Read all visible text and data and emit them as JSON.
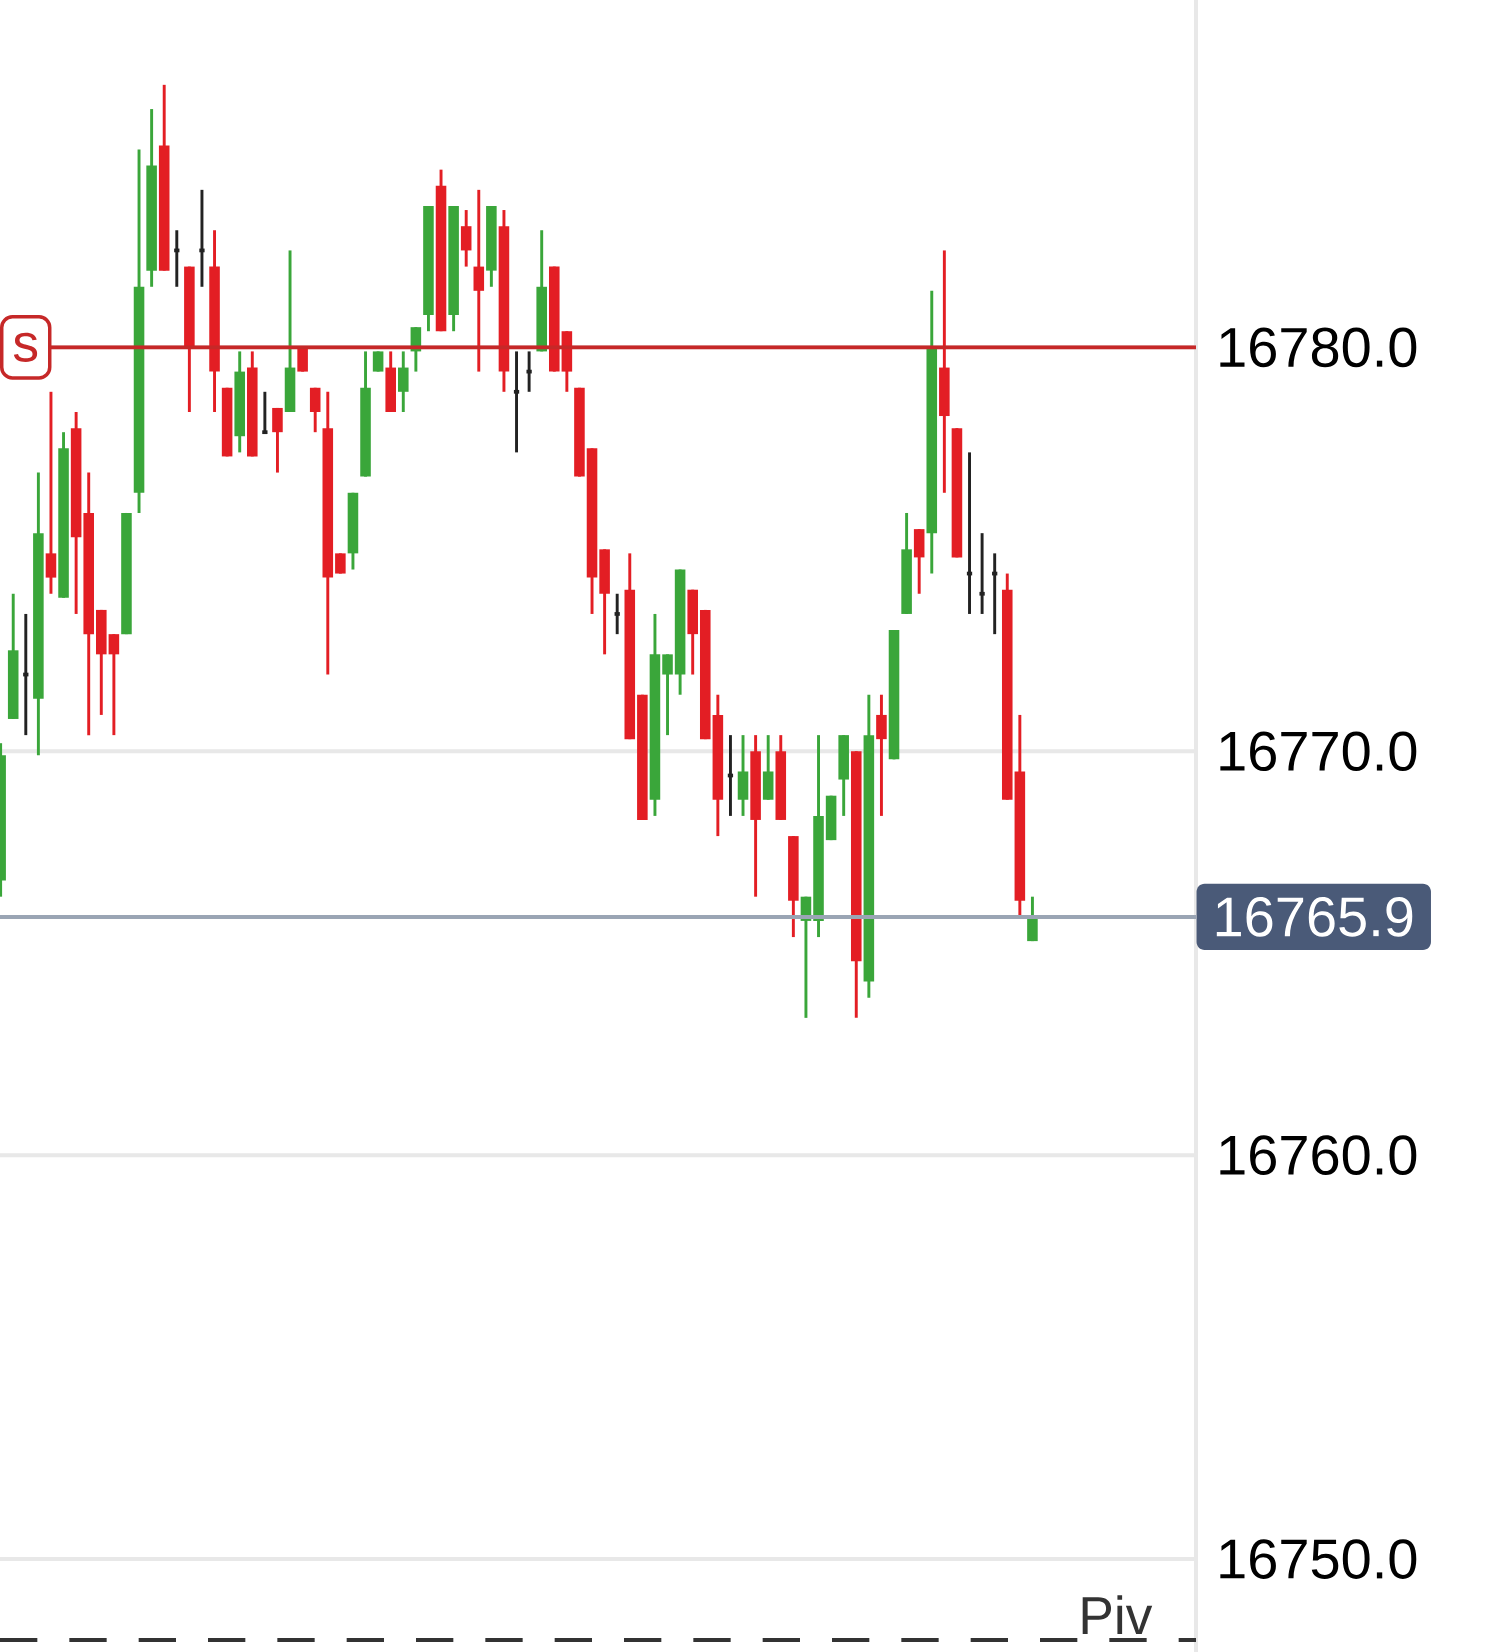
{
  "chart_data": {
    "type": "candlestick",
    "categories": [
      null,
      null,
      null,
      null,
      null,
      null,
      null,
      null,
      null,
      null,
      null,
      null,
      null,
      null,
      null,
      null,
      null,
      null,
      null,
      null,
      null,
      null,
      null,
      null,
      null,
      null,
      null,
      null,
      null,
      null,
      null,
      null,
      null,
      null,
      null,
      null,
      null,
      null,
      null,
      null,
      null,
      null,
      null,
      null,
      null,
      null,
      null,
      null,
      null,
      null,
      null,
      null,
      null,
      null,
      null,
      null,
      null,
      null,
      null,
      null,
      null,
      null,
      null,
      null,
      null,
      null,
      null,
      null,
      null,
      null,
      null,
      null,
      null,
      null,
      null,
      null,
      null,
      null,
      null,
      null,
      null,
      null,
      null
    ],
    "ohlc": [
      [
        16766.8,
        16770.2,
        16766.4,
        16769.9
      ],
      [
        16770.8,
        16773.9,
        16770.8,
        16772.5
      ],
      [
        16771.9,
        16773.4,
        16770.4,
        16771.9
      ],
      [
        16771.3,
        16776.9,
        16769.9,
        16775.4
      ],
      [
        16774.9,
        16778.9,
        16773.9,
        16774.3
      ],
      [
        16773.8,
        16777.9,
        16773.8,
        16777.5
      ],
      [
        16778.0,
        16778.4,
        16773.4,
        16775.3
      ],
      [
        16775.9,
        16776.9,
        16770.4,
        16772.9
      ],
      [
        16773.5,
        16773.5,
        16770.9,
        16772.4
      ],
      [
        16772.9,
        16772.9,
        16770.4,
        16772.4
      ],
      [
        16772.9,
        16775.9,
        16772.9,
        16775.9
      ],
      [
        16776.4,
        16784.9,
        16775.9,
        16781.5
      ],
      [
        16781.9,
        16785.9,
        16781.5,
        16784.5
      ],
      [
        16785.0,
        16786.5,
        16781.9,
        16781.9
      ],
      [
        16782.4,
        16782.9,
        16781.5,
        16782.4
      ],
      [
        16782.0,
        16782.0,
        16778.4,
        16780.0
      ],
      [
        16782.4,
        16783.9,
        16781.5,
        16782.4
      ],
      [
        16782.0,
        16782.9,
        16778.4,
        16779.4
      ],
      [
        16779.0,
        16779.0,
        16777.3,
        16777.3
      ],
      [
        16777.8,
        16779.9,
        16777.4,
        16779.4
      ],
      [
        16779.5,
        16779.9,
        16777.3,
        16777.3
      ],
      [
        16777.9,
        16778.9,
        16777.9,
        16777.9
      ],
      [
        16778.5,
        16778.5,
        16776.9,
        16777.9
      ],
      [
        16778.4,
        16782.4,
        16778.4,
        16779.5
      ],
      [
        16780.0,
        16780.0,
        16779.4,
        16779.4
      ],
      [
        16779.0,
        16779.0,
        16777.9,
        16778.4
      ],
      [
        16778.0,
        16778.9,
        16771.9,
        16774.3
      ],
      [
        16774.9,
        16774.9,
        16774.4,
        16774.4
      ],
      [
        16774.9,
        16776.4,
        16774.5,
        16776.4
      ],
      [
        16776.8,
        16779.9,
        16776.8,
        16779.0
      ],
      [
        16779.4,
        16779.9,
        16779.4,
        16779.9
      ],
      [
        16779.5,
        16779.9,
        16778.4,
        16778.4
      ],
      [
        16778.9,
        16779.9,
        16778.4,
        16779.5
      ],
      [
        16779.9,
        16780.5,
        16779.4,
        16780.5
      ],
      [
        16780.8,
        16783.5,
        16780.4,
        16783.5
      ],
      [
        16784.0,
        16784.4,
        16780.4,
        16780.4
      ],
      [
        16780.8,
        16783.5,
        16780.4,
        16783.5
      ],
      [
        16783.0,
        16783.4,
        16782.0,
        16782.4
      ],
      [
        16782.0,
        16783.9,
        16779.4,
        16781.4
      ],
      [
        16781.9,
        16783.5,
        16781.5,
        16783.5
      ],
      [
        16783.0,
        16783.4,
        16778.9,
        16779.4
      ],
      [
        16778.9,
        16779.9,
        16777.4,
        16778.9
      ],
      [
        16779.4,
        16779.9,
        16778.9,
        16779.4
      ],
      [
        16779.9,
        16782.9,
        16779.9,
        16781.5
      ],
      [
        16782.0,
        16782.0,
        16779.4,
        16779.4
      ],
      [
        16780.4,
        16780.4,
        16778.9,
        16779.4
      ],
      [
        16779.0,
        16779.0,
        16776.8,
        16776.8
      ],
      [
        16777.5,
        16777.5,
        16773.4,
        16774.3
      ],
      [
        16775.0,
        16775.0,
        16772.4,
        16773.9
      ],
      [
        16773.4,
        16773.9,
        16772.9,
        16773.4
      ],
      [
        16774.0,
        16774.9,
        16770.3,
        16770.3
      ],
      [
        16771.4,
        16771.4,
        16768.3,
        16768.3
      ],
      [
        16768.8,
        16773.4,
        16768.4,
        16772.4
      ],
      [
        16771.9,
        16772.4,
        16770.4,
        16772.4
      ],
      [
        16771.9,
        16774.5,
        16771.4,
        16774.5
      ],
      [
        16774.0,
        16774.0,
        16771.9,
        16772.9
      ],
      [
        16773.5,
        16773.5,
        16770.3,
        16770.3
      ],
      [
        16770.9,
        16771.4,
        16767.9,
        16768.8
      ],
      [
        16769.4,
        16770.4,
        16768.4,
        16769.4
      ],
      [
        16768.8,
        16770.4,
        16768.4,
        16769.5
      ],
      [
        16770.0,
        16770.4,
        16766.4,
        16768.3
      ],
      [
        16768.8,
        16770.4,
        16768.8,
        16769.5
      ],
      [
        16770.0,
        16770.4,
        16768.3,
        16768.3
      ],
      [
        16767.9,
        16767.9,
        16765.4,
        16766.3
      ],
      [
        16765.8,
        16766.4,
        16763.4,
        16766.4
      ],
      [
        16765.8,
        16770.4,
        16765.4,
        16768.4
      ],
      [
        16767.8,
        16768.9,
        16767.8,
        16768.9
      ],
      [
        16769.3,
        16770.4,
        16768.4,
        16770.4
      ],
      [
        16770.0,
        16770.0,
        16763.4,
        16764.8
      ],
      [
        16764.3,
        16771.4,
        16763.9,
        16770.4
      ],
      [
        16770.9,
        16771.4,
        16768.4,
        16770.3
      ],
      [
        16769.8,
        16773.0,
        16769.8,
        16773.0
      ],
      [
        16773.4,
        16775.9,
        16773.4,
        16775.0
      ],
      [
        16775.5,
        16775.5,
        16773.9,
        16774.8
      ],
      [
        16775.4,
        16781.4,
        16774.4,
        16780.0
      ],
      [
        16779.5,
        16782.4,
        16776.4,
        16778.3
      ],
      [
        16778.0,
        16778.0,
        16774.8,
        16774.8
      ],
      [
        16774.4,
        16777.4,
        16773.4,
        16774.4
      ],
      [
        16773.9,
        16775.4,
        16773.4,
        16773.9
      ],
      [
        16774.4,
        16774.9,
        16772.9,
        16774.4
      ],
      [
        16774.0,
        16774.4,
        16768.8,
        16768.8
      ],
      [
        16769.5,
        16770.9,
        16765.9,
        16766.3
      ],
      [
        16765.3,
        16766.4,
        16765.3,
        16765.9
      ]
    ],
    "colors": [
      "#3aa63a",
      "#3aa63a",
      "#222222",
      "#3aa63a",
      "#e31e24",
      "#3aa63a",
      "#e31e24",
      "#e31e24",
      "#e31e24",
      "#e31e24",
      "#3aa63a",
      "#3aa63a",
      "#3aa63a",
      "#e31e24",
      "#222222",
      "#e31e24",
      "#222222",
      "#e31e24",
      "#e31e24",
      "#3aa63a",
      "#e31e24",
      "#222222",
      "#e31e24",
      "#3aa63a",
      "#e31e24",
      "#e31e24",
      "#e31e24",
      "#e31e24",
      "#3aa63a",
      "#3aa63a",
      "#3aa63a",
      "#e31e24",
      "#3aa63a",
      "#3aa63a",
      "#3aa63a",
      "#e31e24",
      "#3aa63a",
      "#e31e24",
      "#e31e24",
      "#3aa63a",
      "#e31e24",
      "#222222",
      "#222222",
      "#3aa63a",
      "#e31e24",
      "#e31e24",
      "#e31e24",
      "#e31e24",
      "#e31e24",
      "#222222",
      "#e31e24",
      "#e31e24",
      "#3aa63a",
      "#3aa63a",
      "#3aa63a",
      "#e31e24",
      "#e31e24",
      "#e31e24",
      "#222222",
      "#3aa63a",
      "#e31e24",
      "#3aa63a",
      "#e31e24",
      "#e31e24",
      "#3aa63a",
      "#3aa63a",
      "#3aa63a",
      "#3aa63a",
      "#e31e24",
      "#3aa63a",
      "#e31e24",
      "#3aa63a",
      "#3aa63a",
      "#e31e24",
      "#3aa63a",
      "#e31e24",
      "#e31e24",
      "#222222",
      "#222222",
      "#222222",
      "#e31e24",
      "#e31e24",
      "#3aa63a"
    ],
    "ylim": [
      16747.7,
      16788.6
    ],
    "yticks": [
      {
        "value": 16750,
        "label": "16750.0"
      },
      {
        "value": 16760,
        "label": "16760.0"
      },
      {
        "value": 16770,
        "label": "16770.0"
      },
      {
        "value": 16780,
        "label": "16780.0"
      }
    ],
    "grid": "y",
    "ref_lines": [
      {
        "axis": "y",
        "value": 16780,
        "label": "s",
        "color": "#c62828"
      },
      {
        "axis": "y",
        "value": 16765.9,
        "label": "16765.9",
        "color": "#9aa5b4"
      },
      {
        "axis": "y",
        "value": 16748,
        "label": "Piv",
        "color": "#333333",
        "line_style": "dashed"
      }
    ]
  }
}
